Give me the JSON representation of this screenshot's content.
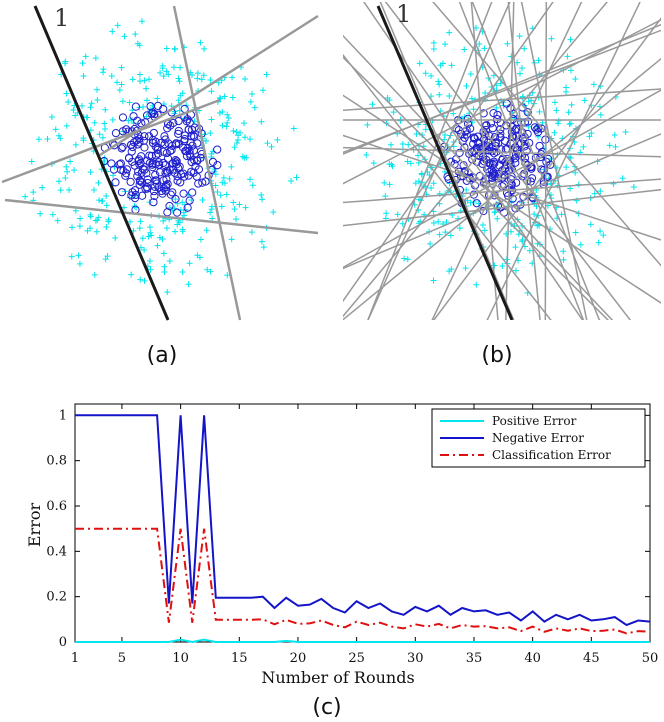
{
  "panels": {
    "a": {
      "caption": "(a)",
      "line_label": "1"
    },
    "b": {
      "caption": "(b)",
      "line_label": "1"
    },
    "c": {
      "caption": "(c)"
    }
  },
  "colors": {
    "positive_marker": "#00e5ee",
    "negative_marker": "#1f1fcc",
    "weak_line": "#999999",
    "first_line": "#1a1a1a"
  },
  "icons": {
    "positive": "plus-marker",
    "negative": "circle-marker"
  },
  "chart_data": {
    "type": "line",
    "xlabel": "Number of Rounds",
    "ylabel": "Error",
    "xlim": [
      1,
      50
    ],
    "ylim": [
      0,
      1.05
    ],
    "xticks": [
      1,
      5,
      10,
      15,
      20,
      25,
      30,
      35,
      40,
      45,
      50
    ],
    "yticks": [
      0,
      0.2,
      0.4,
      0.6,
      0.8,
      1
    ],
    "legend_position": "top-right",
    "x": [
      1,
      2,
      3,
      4,
      5,
      6,
      7,
      8,
      9,
      10,
      11,
      12,
      13,
      14,
      15,
      16,
      17,
      18,
      19,
      20,
      21,
      22,
      23,
      24,
      25,
      26,
      27,
      28,
      29,
      30,
      31,
      32,
      33,
      34,
      35,
      36,
      37,
      38,
      39,
      40,
      41,
      42,
      43,
      44,
      45,
      46,
      47,
      48,
      49,
      50
    ],
    "series": [
      {
        "name": "Positive Error",
        "color": "#00e5ee",
        "style": "solid",
        "values": [
          0,
          0,
          0,
          0,
          0,
          0,
          0,
          0,
          0,
          0.01,
          0,
          0.01,
          0,
          0,
          0,
          0,
          0,
          0,
          0.005,
          0,
          0,
          0,
          0,
          0,
          0,
          0,
          0,
          0,
          0,
          0,
          0,
          0,
          0,
          0,
          0,
          0,
          0,
          0,
          0,
          0,
          0,
          0,
          0,
          0,
          0,
          0,
          0,
          0,
          0,
          0
        ]
      },
      {
        "name": "Negative Error",
        "color": "#1414c8",
        "style": "solid",
        "values": [
          1,
          1,
          1,
          1,
          1,
          1,
          1,
          1,
          0.17,
          1,
          0.17,
          1,
          0.195,
          0.195,
          0.195,
          0.195,
          0.2,
          0.15,
          0.195,
          0.16,
          0.165,
          0.19,
          0.15,
          0.13,
          0.18,
          0.15,
          0.17,
          0.135,
          0.12,
          0.155,
          0.135,
          0.16,
          0.12,
          0.15,
          0.135,
          0.14,
          0.12,
          0.13,
          0.095,
          0.135,
          0.09,
          0.12,
          0.1,
          0.12,
          0.095,
          0.1,
          0.11,
          0.075,
          0.095,
          0.09
        ]
      },
      {
        "name": "Classification Error",
        "color": "#e01010",
        "style": "dashdot",
        "values": [
          0.5,
          0.5,
          0.5,
          0.5,
          0.5,
          0.5,
          0.5,
          0.5,
          0.085,
          0.5,
          0.085,
          0.5,
          0.098,
          0.098,
          0.098,
          0.098,
          0.1,
          0.078,
          0.098,
          0.08,
          0.082,
          0.095,
          0.075,
          0.065,
          0.09,
          0.075,
          0.085,
          0.068,
          0.06,
          0.078,
          0.068,
          0.08,
          0.06,
          0.075,
          0.068,
          0.07,
          0.06,
          0.065,
          0.048,
          0.068,
          0.045,
          0.06,
          0.05,
          0.06,
          0.048,
          0.05,
          0.055,
          0.038,
          0.048,
          0.045
        ]
      }
    ]
  }
}
